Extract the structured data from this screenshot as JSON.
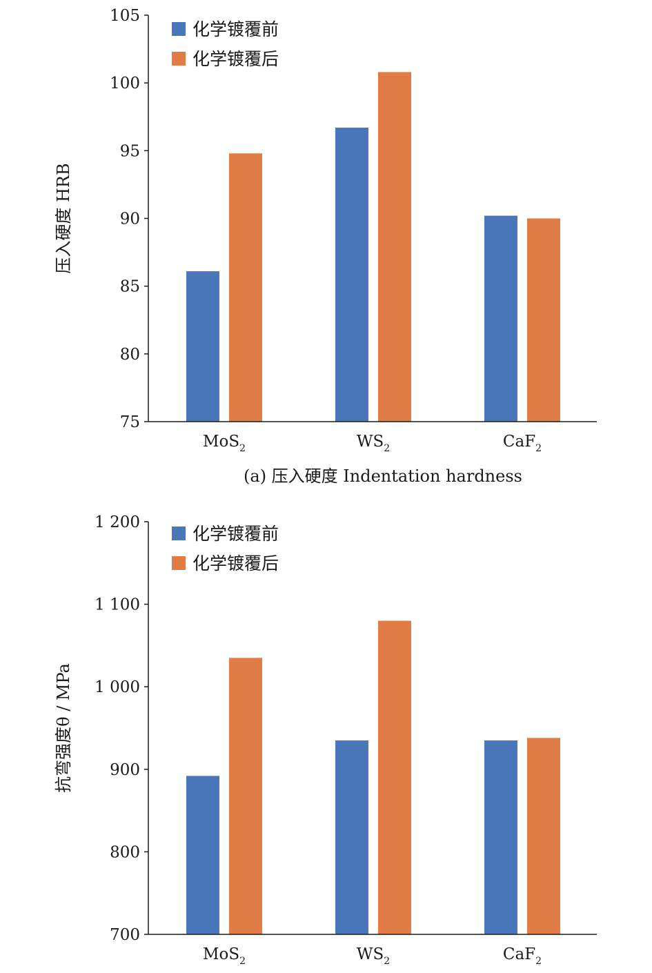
{
  "chart_data": [
    {
      "type": "bar",
      "categories": [
        "MoS₂",
        "WS₂",
        "CaF₂"
      ],
      "series": [
        {
          "name": "化学镀覆前",
          "values": [
            86.1,
            96.7,
            90.2
          ]
        },
        {
          "name": "化学镀覆后",
          "values": [
            94.8,
            100.8,
            90.0
          ]
        }
      ],
      "ylabel": "压入硬度 HRB",
      "caption": "(a) 压入硬度 Indentation hardness",
      "ylim": [
        75,
        105
      ],
      "yticks": [
        75,
        80,
        85,
        90,
        95,
        100,
        105
      ],
      "ytick_labels": [
        "75",
        "80",
        "85",
        "90",
        "95",
        "100",
        "105"
      ],
      "legend_position": "top-left",
      "grid": false
    },
    {
      "type": "bar",
      "categories": [
        "MoS₂",
        "WS₂",
        "CaF₂"
      ],
      "series": [
        {
          "name": "化学镀覆前",
          "values": [
            892,
            935,
            935
          ]
        },
        {
          "name": "化学镀覆后",
          "values": [
            1035,
            1080,
            938
          ]
        }
      ],
      "ylabel": "抗弯强度θ / MPa",
      "ylim": [
        700,
        1200
      ],
      "yticks": [
        700,
        800,
        900,
        1000,
        1100,
        1200
      ],
      "ytick_labels": [
        "700",
        "800",
        "900",
        "1 000",
        "1 100",
        "1 200"
      ],
      "legend_position": "top-left",
      "grid": false
    }
  ],
  "colors": {
    "series": [
      "#4a76ba",
      "#e27c46"
    ],
    "axis": "#1a1a1a"
  }
}
